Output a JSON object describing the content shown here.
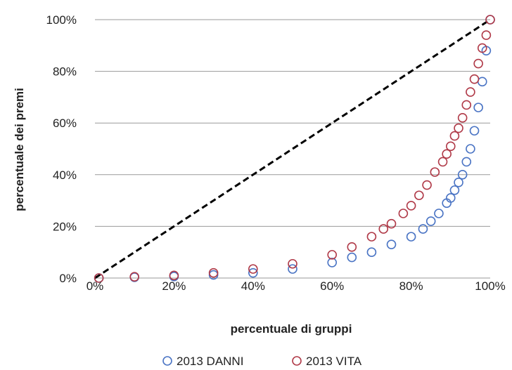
{
  "chart_data": {
    "type": "scatter",
    "title": "",
    "xlabel": "percentuale di gruppi",
    "ylabel": "percentuale dei premi",
    "xlim": [
      0,
      100
    ],
    "ylim": [
      0,
      100
    ],
    "x_ticks": [
      "0%",
      "20%",
      "40%",
      "60%",
      "80%",
      "100%"
    ],
    "y_ticks": [
      "0%",
      "20%",
      "40%",
      "60%",
      "80%",
      "100%"
    ],
    "grid": "horizontal",
    "legend_position": "bottom",
    "reference_line": {
      "x": [
        0,
        100
      ],
      "y": [
        0,
        100
      ],
      "style": "dashed",
      "color": "#000000"
    },
    "series": [
      {
        "name": "2013 DANNI",
        "color": "#4a74c4",
        "x": [
          1,
          10,
          20,
          30,
          40,
          50,
          60,
          65,
          70,
          75,
          80,
          83,
          85,
          87,
          89,
          90,
          91,
          92,
          93,
          94,
          95,
          96,
          97,
          98,
          99,
          100
        ],
        "y": [
          0,
          0.3,
          0.6,
          1.2,
          2,
          3.5,
          6,
          8,
          10,
          13,
          16,
          19,
          22,
          25,
          29,
          31,
          34,
          37,
          40,
          45,
          50,
          57,
          66,
          76,
          88,
          100
        ]
      },
      {
        "name": "2013 VITA",
        "color": "#b03a48",
        "x": [
          1,
          10,
          20,
          30,
          40,
          50,
          60,
          65,
          70,
          73,
          75,
          78,
          80,
          82,
          84,
          86,
          88,
          89,
          90,
          91,
          92,
          93,
          94,
          95,
          96,
          97,
          98,
          99,
          100
        ],
        "y": [
          0,
          0.5,
          1,
          2,
          3.5,
          5.5,
          9,
          12,
          16,
          19,
          21,
          25,
          28,
          32,
          36,
          41,
          45,
          48,
          51,
          55,
          58,
          62,
          67,
          72,
          77,
          83,
          89,
          94,
          100
        ]
      }
    ]
  }
}
